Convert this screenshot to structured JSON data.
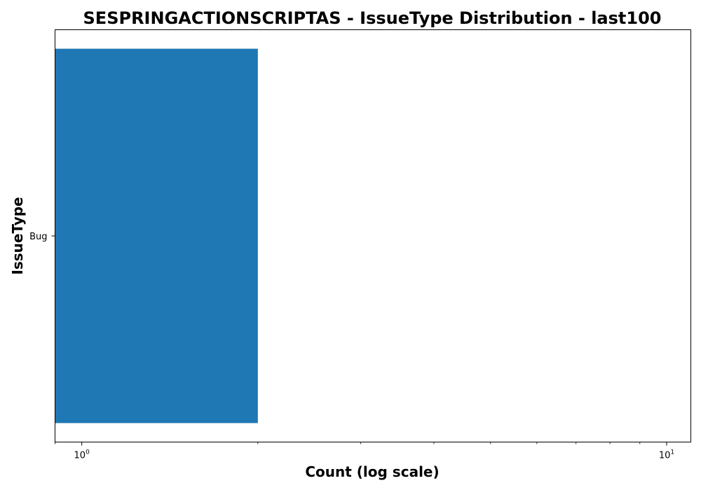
{
  "chart_data": {
    "type": "bar",
    "orientation": "horizontal",
    "title": "SESPRINGACTIONSCRIPTAS - IssueType Distribution - last100",
    "xlabel": "Count (log scale)",
    "ylabel": "IssueType",
    "x_scale": "log",
    "xlim": [
      0.9,
      11
    ],
    "x_ticks": [
      {
        "value": 1,
        "base": "10",
        "exp": "0"
      },
      {
        "value": 10,
        "base": "10",
        "exp": "1"
      }
    ],
    "categories": [
      "Bug"
    ],
    "values": [
      2
    ],
    "bar_color": "#1f77b4",
    "grid": false,
    "legend": "none"
  }
}
